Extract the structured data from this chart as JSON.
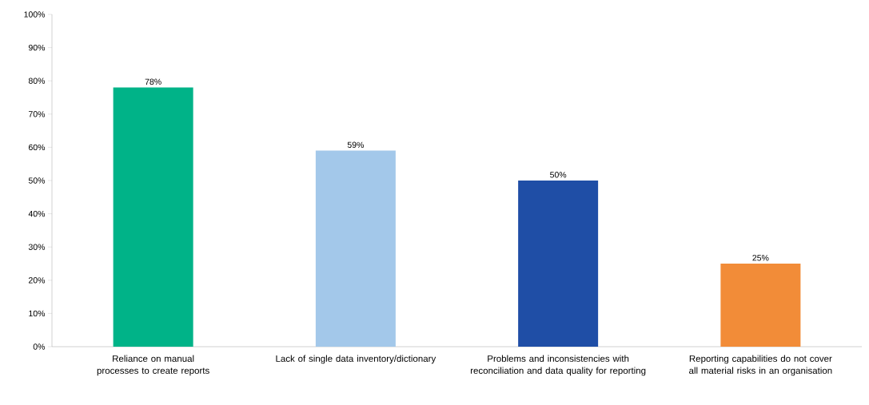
{
  "chart_data": {
    "type": "bar",
    "categories": [
      "Reliance on manual processes to create reports",
      "Lack of single data inventory/dictionary",
      "Problems and inconsistencies with reconciliation and data quality for reporting",
      "Reporting capabilities do not cover all material risks in an organisation"
    ],
    "values": [
      78,
      59,
      50,
      25
    ],
    "colors": [
      "#00b388",
      "#a3c8ea",
      "#1f4ea6",
      "#f28c38"
    ],
    "value_labels": [
      "78%",
      "59%",
      "50%",
      "25%"
    ],
    "ylim": [
      0,
      100
    ],
    "yticks": [
      {
        "value": 0,
        "label": "0%"
      },
      {
        "value": 10,
        "label": "10%"
      },
      {
        "value": 20,
        "label": "20%"
      },
      {
        "value": 30,
        "label": "30%"
      },
      {
        "value": 40,
        "label": "40%"
      },
      {
        "value": 50,
        "label": "50%"
      },
      {
        "value": 60,
        "label": "60%"
      },
      {
        "value": 70,
        "label": "70%"
      },
      {
        "value": 80,
        "label": "80%"
      },
      {
        "value": 90,
        "label": "90%"
      },
      {
        "value": 100,
        "label": "100%"
      }
    ],
    "grid": false
  }
}
